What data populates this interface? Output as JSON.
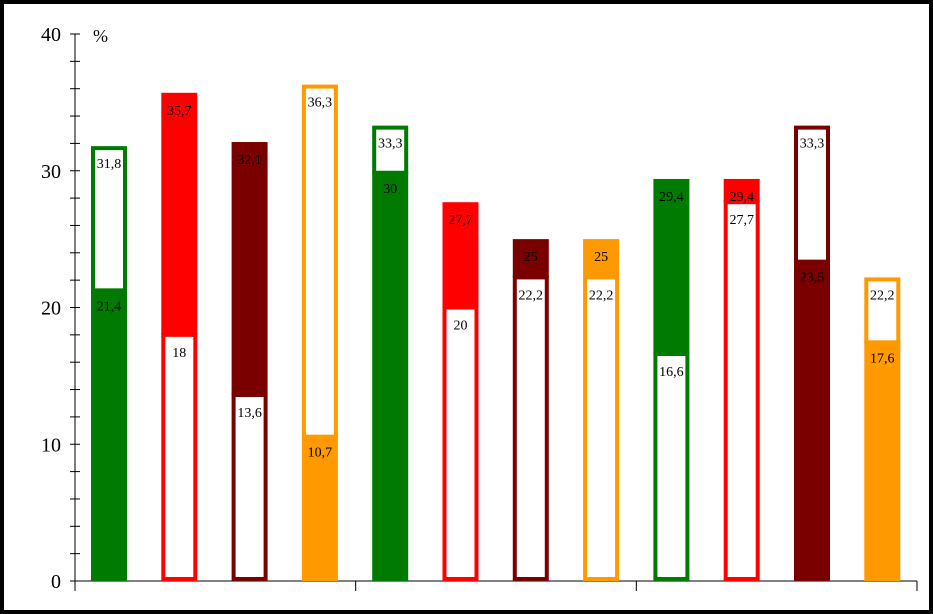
{
  "colors": {
    "green": "#007A00",
    "red": "#FF0000",
    "darkred": "#7A0000",
    "orange": "#FF9900"
  },
  "chart_data": {
    "type": "bar",
    "title": "",
    "xlabel": "",
    "ylabel": "%",
    "ylim": [
      0,
      40
    ],
    "y_ticks": [
      "0",
      "10",
      "20",
      "30",
      "40"
    ],
    "grid": false,
    "legend": "none",
    "bars": [
      {
        "color": "green",
        "outer": 31.8,
        "inner": 21.4,
        "outer_label": "31,8",
        "inner_label": "21,4",
        "style": "outline-over-fill"
      },
      {
        "color": "red",
        "outer": 35.7,
        "inner": 18.0,
        "outer_label": "35,7",
        "inner_label": "18",
        "style": "fill-over-outline"
      },
      {
        "color": "darkred",
        "outer": 32.1,
        "inner": 13.6,
        "outer_label": "32,1",
        "inner_label": "13,6",
        "style": "fill-over-outline"
      },
      {
        "color": "orange",
        "outer": 36.3,
        "inner": 10.7,
        "outer_label": "36,3",
        "inner_label": "10,7",
        "style": "outline-over-fill"
      },
      {
        "color": "green",
        "outer": 33.3,
        "inner": 30.0,
        "outer_label": "33,3",
        "inner_label": "30",
        "style": "outline-over-fill"
      },
      {
        "color": "red",
        "outer": 27.7,
        "inner": 20.0,
        "outer_label": "27,7",
        "inner_label": "20",
        "style": "fill-over-outline"
      },
      {
        "color": "darkred",
        "outer": 25.0,
        "inner": 22.2,
        "outer_label": "25",
        "inner_label": "22,2",
        "style": "fill-over-outline"
      },
      {
        "color": "orange",
        "outer": 25.0,
        "inner": 22.2,
        "outer_label": "25",
        "inner_label": "22,2",
        "style": "fill-over-outline"
      },
      {
        "color": "green",
        "outer": 29.4,
        "inner": 16.6,
        "outer_label": "29,4",
        "inner_label": "16,6",
        "style": "fill-over-outline"
      },
      {
        "color": "red",
        "outer": 29.4,
        "inner": 27.7,
        "outer_label": "29,4",
        "inner_label": "27,7",
        "style": "fill-over-outline"
      },
      {
        "color": "darkred",
        "outer": 33.3,
        "inner": 23.5,
        "outer_label": "33,3",
        "inner_label": "23,5",
        "style": "outline-over-fill"
      },
      {
        "color": "orange",
        "outer": 22.2,
        "inner": 17.6,
        "outer_label": "22,2",
        "inner_label": "17,6",
        "style": "outline-over-fill"
      }
    ],
    "groups": 3,
    "bars_per_group": 4
  }
}
